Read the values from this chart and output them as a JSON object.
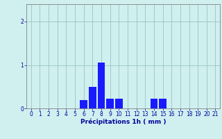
{
  "hours": [
    0,
    1,
    2,
    3,
    4,
    5,
    6,
    7,
    8,
    9,
    10,
    11,
    12,
    13,
    14,
    15,
    16,
    17,
    18,
    19,
    20,
    21
  ],
  "values": [
    0,
    0,
    0,
    0,
    0,
    0,
    0.2,
    0.5,
    1.05,
    0.22,
    0.22,
    0,
    0,
    0,
    0.22,
    0.22,
    0,
    0,
    0,
    0,
    0,
    0
  ],
  "bar_color": "#1a1aff",
  "background_color": "#d0f0f0",
  "grid_color": "#a0c8c8",
  "axis_color": "#808080",
  "tick_color": "#000099",
  "xlabel": "Précipitations 1h ( mm )",
  "xlabel_color": "#000099",
  "ylim": [
    0,
    2.4
  ],
  "yticks": [
    0,
    1,
    2
  ],
  "xlim": [
    -0.5,
    21.5
  ],
  "bar_width": 0.85,
  "label_fontsize": 6.5,
  "tick_fontsize": 5.5
}
